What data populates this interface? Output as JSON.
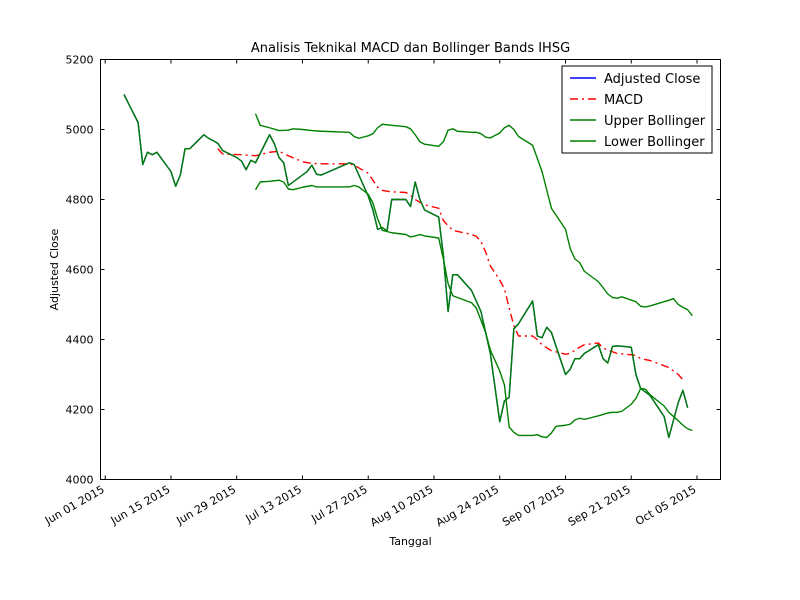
{
  "chart_data": {
    "type": "line",
    "title": "Analisis Teknikal MACD dan Bollinger Bands IHSG",
    "xlabel": "Tanggal",
    "ylabel": "Adjusted Close",
    "x_ticks": [
      "Jun 01 2015",
      "Jun 15 2015",
      "Jun 29 2015",
      "Jul 13 2015",
      "Jul 27 2015",
      "Aug 10 2015",
      "Aug 24 2015",
      "Sep 07 2015",
      "Sep 21 2015",
      "Oct 05 2015"
    ],
    "xlim": [
      "2015-05-31",
      "2015-10-10"
    ],
    "ylim": [
      4000,
      5200
    ],
    "y_ticks": [
      "4000",
      "4200",
      "4400",
      "4600",
      "4800",
      "5000",
      "5200"
    ],
    "grid": false,
    "legend_position": "top-right",
    "series": [
      {
        "name": "Adjusted Close",
        "color": "#0000ff",
        "style": "solid",
        "points": [
          [
            "2015-06-05",
            5100
          ],
          [
            "2015-06-08",
            5020
          ],
          [
            "2015-06-09",
            4900
          ],
          [
            "2015-06-10",
            4935
          ],
          [
            "2015-06-11",
            4928
          ],
          [
            "2015-06-12",
            4935
          ],
          [
            "2015-06-15",
            4880
          ],
          [
            "2015-06-16",
            4838
          ],
          [
            "2015-06-17",
            4870
          ],
          [
            "2015-06-18",
            4945
          ],
          [
            "2015-06-19",
            4945
          ],
          [
            "2015-06-22",
            4985
          ],
          [
            "2015-06-23",
            4975
          ],
          [
            "2015-06-24",
            4968
          ],
          [
            "2015-06-25",
            4960
          ],
          [
            "2015-06-26",
            4940
          ],
          [
            "2015-06-29",
            4920
          ],
          [
            "2015-06-30",
            4910
          ],
          [
            "2015-07-01",
            4885
          ],
          [
            "2015-07-02",
            4912
          ],
          [
            "2015-07-03",
            4905
          ],
          [
            "2015-07-06",
            4985
          ],
          [
            "2015-07-07",
            4960
          ],
          [
            "2015-07-08",
            4920
          ],
          [
            "2015-07-09",
            4905
          ],
          [
            "2015-07-10",
            4840
          ],
          [
            "2015-07-13",
            4870
          ],
          [
            "2015-07-14",
            4880
          ],
          [
            "2015-07-15",
            4898
          ],
          [
            "2015-07-16",
            4872
          ],
          [
            "2015-07-17",
            4870
          ],
          [
            "2015-07-23",
            4905
          ],
          [
            "2015-07-24",
            4900
          ],
          [
            "2015-07-27",
            4810
          ],
          [
            "2015-07-28",
            4770
          ],
          [
            "2015-07-29",
            4715
          ],
          [
            "2015-07-30",
            4720
          ],
          [
            "2015-07-31",
            4710
          ],
          [
            "2015-08-01",
            4800
          ],
          [
            "2015-08-04",
            4800
          ],
          [
            "2015-08-05",
            4780
          ],
          [
            "2015-08-06",
            4850
          ],
          [
            "2015-08-07",
            4800
          ],
          [
            "2015-08-08",
            4770
          ],
          [
            "2015-08-11",
            4750
          ],
          [
            "2015-08-12",
            4640
          ],
          [
            "2015-08-13",
            4480
          ],
          [
            "2015-08-14",
            4585
          ],
          [
            "2015-08-15",
            4585
          ],
          [
            "2015-08-18",
            4540
          ],
          [
            "2015-08-19",
            4510
          ],
          [
            "2015-08-20",
            4480
          ],
          [
            "2015-08-21",
            4420
          ],
          [
            "2015-08-22",
            4360
          ],
          [
            "2015-08-24",
            4165
          ],
          [
            "2015-08-25",
            4225
          ],
          [
            "2015-08-26",
            4235
          ],
          [
            "2015-08-27",
            4430
          ],
          [
            "2015-08-28",
            4445
          ],
          [
            "2015-08-31",
            4510
          ],
          [
            "2015-09-01",
            4410
          ],
          [
            "2015-09-02",
            4405
          ],
          [
            "2015-09-03",
            4435
          ],
          [
            "2015-09-04",
            4420
          ],
          [
            "2015-09-07",
            4300
          ],
          [
            "2015-09-08",
            4315
          ],
          [
            "2015-09-09",
            4345
          ],
          [
            "2015-09-10",
            4345
          ],
          [
            "2015-09-11",
            4360
          ],
          [
            "2015-09-14",
            4385
          ],
          [
            "2015-09-15",
            4345
          ],
          [
            "2015-09-16",
            4333
          ],
          [
            "2015-09-17",
            4380
          ],
          [
            "2015-09-18",
            4382
          ],
          [
            "2015-09-21",
            4378
          ],
          [
            "2015-09-22",
            4300
          ],
          [
            "2015-09-23",
            4260
          ],
          [
            "2015-09-25",
            4240
          ],
          [
            "2015-09-28",
            4180
          ],
          [
            "2015-09-29",
            4120
          ],
          [
            "2015-10-01",
            4220
          ],
          [
            "2015-10-02",
            4255
          ],
          [
            "2015-10-03",
            4205
          ]
        ]
      },
      {
        "name": "MACD",
        "color": "#ff0000",
        "style": "dashdot",
        "points": [
          [
            "2015-06-25",
            4945
          ],
          [
            "2015-06-26",
            4930
          ],
          [
            "2015-06-30",
            4928
          ],
          [
            "2015-07-03",
            4925
          ],
          [
            "2015-07-06",
            4935
          ],
          [
            "2015-07-08",
            4938
          ],
          [
            "2015-07-10",
            4925
          ],
          [
            "2015-07-13",
            4908
          ],
          [
            "2015-07-15",
            4903
          ],
          [
            "2015-07-17",
            4902
          ],
          [
            "2015-07-23",
            4902
          ],
          [
            "2015-07-24",
            4898
          ],
          [
            "2015-07-27",
            4875
          ],
          [
            "2015-07-28",
            4855
          ],
          [
            "2015-07-29",
            4835
          ],
          [
            "2015-07-30",
            4826
          ],
          [
            "2015-08-01",
            4822
          ],
          [
            "2015-08-04",
            4820
          ],
          [
            "2015-08-05",
            4812
          ],
          [
            "2015-08-06",
            4800
          ],
          [
            "2015-08-07",
            4792
          ],
          [
            "2015-08-08",
            4785
          ],
          [
            "2015-08-11",
            4775
          ],
          [
            "2015-08-12",
            4740
          ],
          [
            "2015-08-13",
            4725
          ],
          [
            "2015-08-14",
            4712
          ],
          [
            "2015-08-18",
            4700
          ],
          [
            "2015-08-19",
            4695
          ],
          [
            "2015-08-20",
            4680
          ],
          [
            "2015-08-21",
            4650
          ],
          [
            "2015-08-22",
            4610
          ],
          [
            "2015-08-24",
            4570
          ],
          [
            "2015-08-25",
            4545
          ],
          [
            "2015-08-26",
            4490
          ],
          [
            "2015-08-27",
            4440
          ],
          [
            "2015-08-28",
            4410
          ],
          [
            "2015-08-31",
            4410
          ],
          [
            "2015-09-01",
            4400
          ],
          [
            "2015-09-02",
            4385
          ],
          [
            "2015-09-04",
            4368
          ],
          [
            "2015-09-07",
            4358
          ],
          [
            "2015-09-08",
            4360
          ],
          [
            "2015-09-10",
            4378
          ],
          [
            "2015-09-11",
            4385
          ],
          [
            "2015-09-14",
            4390
          ],
          [
            "2015-09-15",
            4375
          ],
          [
            "2015-09-17",
            4365
          ],
          [
            "2015-09-18",
            4360
          ],
          [
            "2015-09-22",
            4355
          ],
          [
            "2015-09-23",
            4345
          ],
          [
            "2015-09-25",
            4340
          ],
          [
            "2015-09-28",
            4325
          ],
          [
            "2015-09-29",
            4320
          ],
          [
            "2015-10-01",
            4300
          ],
          [
            "2015-10-02",
            4285
          ]
        ]
      },
      {
        "name": "Upper Bollinger",
        "color": "#008000",
        "style": "solid",
        "points": [
          [
            "2015-07-03",
            5045
          ],
          [
            "2015-07-04",
            5012
          ],
          [
            "2015-07-06",
            5005
          ],
          [
            "2015-07-08",
            4997
          ],
          [
            "2015-07-10",
            4998
          ],
          [
            "2015-07-11",
            5002
          ],
          [
            "2015-07-13",
            5000
          ],
          [
            "2015-07-15",
            4997
          ],
          [
            "2015-07-17",
            4995
          ],
          [
            "2015-07-23",
            4992
          ],
          [
            "2015-07-24",
            4980
          ],
          [
            "2015-07-25",
            4975
          ],
          [
            "2015-07-27",
            4982
          ],
          [
            "2015-07-28",
            4988
          ],
          [
            "2015-07-29",
            5005
          ],
          [
            "2015-07-30",
            5015
          ],
          [
            "2015-08-01",
            5012
          ],
          [
            "2015-08-04",
            5008
          ],
          [
            "2015-08-05",
            5002
          ],
          [
            "2015-08-06",
            4985
          ],
          [
            "2015-08-07",
            4965
          ],
          [
            "2015-08-08",
            4958
          ],
          [
            "2015-08-11",
            4952
          ],
          [
            "2015-08-12",
            4965
          ],
          [
            "2015-08-13",
            4998
          ],
          [
            "2015-08-14",
            5002
          ],
          [
            "2015-08-15",
            4995
          ],
          [
            "2015-08-18",
            4992
          ],
          [
            "2015-08-19",
            4992
          ],
          [
            "2015-08-20",
            4988
          ],
          [
            "2015-08-21",
            4978
          ],
          [
            "2015-08-22",
            4976
          ],
          [
            "2015-08-24",
            4990
          ],
          [
            "2015-08-25",
            5005
          ],
          [
            "2015-08-26",
            5012
          ],
          [
            "2015-08-27",
            5000
          ],
          [
            "2015-08-28",
            4980
          ],
          [
            "2015-08-31",
            4955
          ],
          [
            "2015-09-02",
            4880
          ],
          [
            "2015-09-04",
            4775
          ],
          [
            "2015-09-06",
            4735
          ],
          [
            "2015-09-07",
            4715
          ],
          [
            "2015-09-08",
            4660
          ],
          [
            "2015-09-09",
            4630
          ],
          [
            "2015-09-10",
            4620
          ],
          [
            "2015-09-11",
            4595
          ],
          [
            "2015-09-14",
            4565
          ],
          [
            "2015-09-15",
            4548
          ],
          [
            "2015-09-16",
            4530
          ],
          [
            "2015-09-17",
            4520
          ],
          [
            "2015-09-18",
            4518
          ],
          [
            "2015-09-19",
            4522
          ],
          [
            "2015-09-22",
            4508
          ],
          [
            "2015-09-23",
            4495
          ],
          [
            "2015-09-24",
            4493
          ],
          [
            "2015-09-25",
            4496
          ],
          [
            "2015-09-28",
            4508
          ],
          [
            "2015-09-29",
            4512
          ],
          [
            "2015-09-30",
            4517
          ],
          [
            "2015-10-01",
            4500
          ],
          [
            "2015-10-02",
            4492
          ],
          [
            "2015-10-03",
            4485
          ],
          [
            "2015-10-04",
            4468
          ]
        ]
      },
      {
        "name": "Lower Bollinger",
        "color": "#008000",
        "style": "solid",
        "points": [
          [
            "2015-07-03",
            4828
          ],
          [
            "2015-07-04",
            4850
          ],
          [
            "2015-07-06",
            4852
          ],
          [
            "2015-07-08",
            4855
          ],
          [
            "2015-07-09",
            4850
          ],
          [
            "2015-07-10",
            4830
          ],
          [
            "2015-07-11",
            4828
          ],
          [
            "2015-07-13",
            4835
          ],
          [
            "2015-07-15",
            4840
          ],
          [
            "2015-07-16",
            4836
          ],
          [
            "2015-07-23",
            4836
          ],
          [
            "2015-07-24",
            4840
          ],
          [
            "2015-07-25",
            4836
          ],
          [
            "2015-07-27",
            4815
          ],
          [
            "2015-07-28",
            4790
          ],
          [
            "2015-07-29",
            4745
          ],
          [
            "2015-07-30",
            4712
          ],
          [
            "2015-08-01",
            4705
          ],
          [
            "2015-08-04",
            4700
          ],
          [
            "2015-08-05",
            4693
          ],
          [
            "2015-08-06",
            4696
          ],
          [
            "2015-08-07",
            4700
          ],
          [
            "2015-08-08",
            4696
          ],
          [
            "2015-08-11",
            4690
          ],
          [
            "2015-08-12",
            4630
          ],
          [
            "2015-08-13",
            4560
          ],
          [
            "2015-08-14",
            4525
          ],
          [
            "2015-08-18",
            4505
          ],
          [
            "2015-08-19",
            4490
          ],
          [
            "2015-08-20",
            4455
          ],
          [
            "2015-08-21",
            4420
          ],
          [
            "2015-08-22",
            4370
          ],
          [
            "2015-08-24",
            4310
          ],
          [
            "2015-08-25",
            4270
          ],
          [
            "2015-08-26",
            4150
          ],
          [
            "2015-08-27",
            4135
          ],
          [
            "2015-08-28",
            4126
          ],
          [
            "2015-08-31",
            4126
          ],
          [
            "2015-09-01",
            4128
          ],
          [
            "2015-09-02",
            4122
          ],
          [
            "2015-09-03",
            4120
          ],
          [
            "2015-09-04",
            4133
          ],
          [
            "2015-09-05",
            4152
          ],
          [
            "2015-09-07",
            4155
          ],
          [
            "2015-09-08",
            4158
          ],
          [
            "2015-09-09",
            4170
          ],
          [
            "2015-09-10",
            4175
          ],
          [
            "2015-09-11",
            4172
          ],
          [
            "2015-09-12",
            4175
          ],
          [
            "2015-09-14",
            4182
          ],
          [
            "2015-09-15",
            4186
          ],
          [
            "2015-09-16",
            4190
          ],
          [
            "2015-09-17",
            4192
          ],
          [
            "2015-09-18",
            4192
          ],
          [
            "2015-09-19",
            4195
          ],
          [
            "2015-09-21",
            4215
          ],
          [
            "2015-09-22",
            4232
          ],
          [
            "2015-09-23",
            4260
          ],
          [
            "2015-09-24",
            4258
          ],
          [
            "2015-09-25",
            4242
          ],
          [
            "2015-09-28",
            4210
          ],
          [
            "2015-09-29",
            4192
          ],
          [
            "2015-10-01",
            4168
          ],
          [
            "2015-10-02",
            4155
          ],
          [
            "2015-10-03",
            4145
          ],
          [
            "2015-10-04",
            4140
          ]
        ]
      }
    ]
  }
}
